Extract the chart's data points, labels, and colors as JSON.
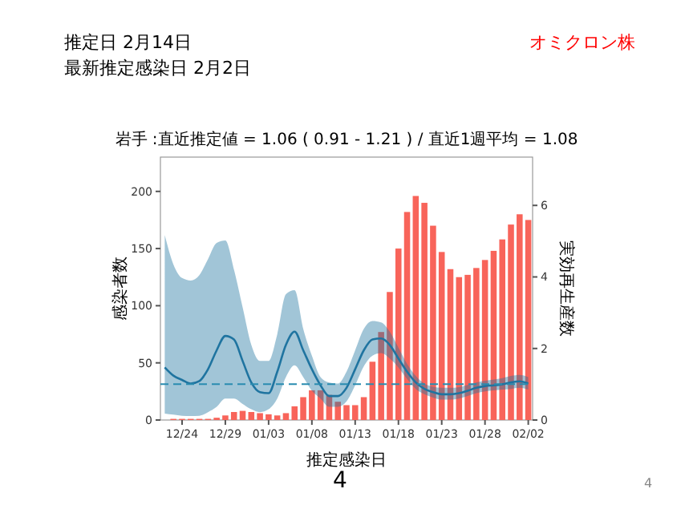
{
  "chart_data": {
    "type": "bar",
    "title": "岩手 :直近推定値 = 1.06 ( 0.91 - 1.21 ) / 直近1週平均 = 1.08",
    "xlabel": "推定感染日",
    "ylabel": "感染者数",
    "y2label": "実効再生産数",
    "annotations": [
      "推定日  2月14日",
      "最新推定感染日  2月2日",
      "オミクロン株",
      "4",
      "4"
    ],
    "categories": [
      null,
      null,
      "12/24",
      null,
      null,
      null,
      null,
      "12/29",
      null,
      null,
      null,
      null,
      "01/03",
      null,
      null,
      null,
      null,
      "01/08",
      null,
      null,
      null,
      null,
      "01/13",
      null,
      null,
      null,
      null,
      "01/18",
      null,
      null,
      null,
      null,
      "01/23",
      null,
      null,
      null,
      null,
      "01/28",
      null,
      null,
      null,
      null,
      "02/02"
    ],
    "ylim": [
      0,
      230
    ],
    "yticks": [
      0,
      50,
      100,
      150,
      200
    ],
    "y2lim": [
      0,
      7.35
    ],
    "y2ticks": [
      0,
      2,
      4,
      6
    ],
    "grid": false,
    "ref_lines": [
      {
        "axis": "y2",
        "value": 1,
        "color": "#2a8cb0",
        "line_style": "dashed"
      }
    ],
    "series": [
      {
        "color": "#f8645a",
        "values": [
          null,
          1,
          1,
          1,
          1,
          1,
          2,
          4,
          7,
          8,
          7,
          6,
          5,
          4,
          6,
          12,
          20,
          26,
          26,
          22,
          16,
          13,
          13,
          20,
          51,
          77,
          112,
          150,
          182,
          196,
          190,
          170,
          147,
          132,
          125,
          127,
          133,
          140,
          148,
          158,
          171,
          180,
          175
        ]
      },
      {
        "type": "line",
        "axis": "y2",
        "color": "#1f74a0",
        "values": [
          1.47,
          1.24,
          1.12,
          1.02,
          1.09,
          1.42,
          1.95,
          2.35,
          2.25,
          1.65,
          1.05,
          0.78,
          0.75,
          1.35,
          2.1,
          2.47,
          1.95,
          1.42,
          0.97,
          0.67,
          0.67,
          0.9,
          1.42,
          1.95,
          2.25,
          2.28,
          2.1,
          1.72,
          1.35,
          1.05,
          0.87,
          0.78,
          0.72,
          0.72,
          0.75,
          0.82,
          0.9,
          0.95,
          0.97,
          1.0,
          1.05,
          1.08,
          1.02
        ],
        "lower": [
          0.18,
          0.15,
          0.12,
          0.11,
          0.12,
          0.22,
          0.37,
          0.6,
          0.6,
          0.45,
          0.3,
          0.22,
          0.3,
          0.6,
          1.2,
          1.53,
          1.2,
          0.82,
          0.6,
          0.37,
          0.37,
          0.52,
          0.97,
          1.5,
          1.8,
          1.87,
          1.72,
          1.47,
          1.15,
          0.87,
          0.72,
          0.63,
          0.57,
          0.57,
          0.6,
          0.67,
          0.75,
          0.8,
          0.83,
          0.85,
          0.87,
          0.9,
          0.85
        ],
        "upper": [
          5.17,
          4.35,
          3.97,
          3.9,
          4.05,
          4.5,
          4.95,
          5.02,
          4.2,
          3.15,
          2.1,
          1.65,
          1.65,
          2.4,
          3.52,
          3.63,
          2.55,
          1.8,
          1.2,
          1.05,
          1.02,
          1.35,
          1.95,
          2.55,
          2.77,
          2.73,
          2.47,
          2.02,
          1.57,
          1.23,
          1.02,
          0.93,
          0.9,
          0.9,
          0.92,
          0.98,
          1.05,
          1.1,
          1.13,
          1.17,
          1.23,
          1.26,
          1.2
        ]
      }
    ]
  }
}
